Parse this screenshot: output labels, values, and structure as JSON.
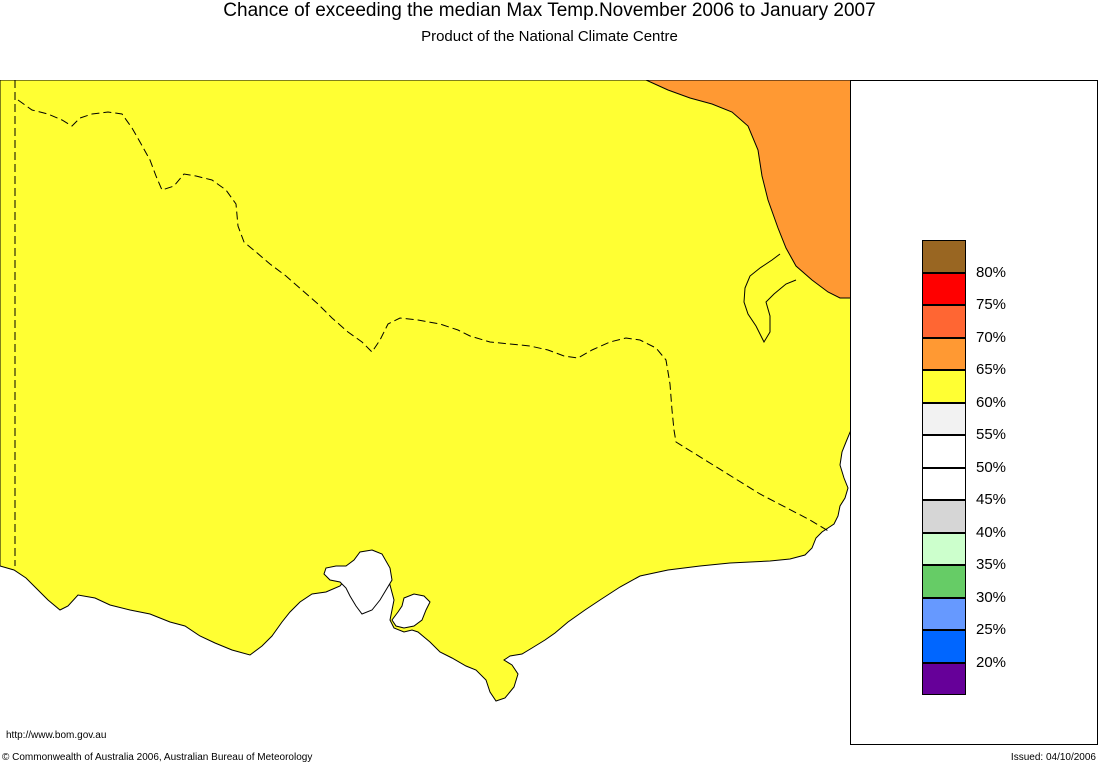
{
  "title": "Chance of exceeding the median Max Temp.November 2006 to January 2007",
  "subtitle": "Product of the National Climate Centre",
  "map": {
    "land_color": "#ffff33",
    "sea_color": "#ffffff",
    "region_65_70_color": "#ff9933",
    "outline_color": "#000000"
  },
  "legend": {
    "items": [
      {
        "color": "#996622",
        "label": "80%"
      },
      {
        "color": "#ff0000",
        "label": "75%"
      },
      {
        "color": "#ff6633",
        "label": "70%"
      },
      {
        "color": "#ff9933",
        "label": "65%"
      },
      {
        "color": "#ffff33",
        "label": "60%"
      },
      {
        "color": "#f2f2f2",
        "label": "55%"
      },
      {
        "color": "#ffffff",
        "label": "50%"
      },
      {
        "color": "#ffffff",
        "label": "45%"
      },
      {
        "color": "#d6d6d6",
        "label": "40%"
      },
      {
        "color": "#ccffcc",
        "label": "35%"
      },
      {
        "color": "#66cc66",
        "label": "30%"
      },
      {
        "color": "#6699ff",
        "label": "25%"
      },
      {
        "color": "#0066ff",
        "label": ""
      },
      {
        "color": "#660099",
        "label": ""
      }
    ],
    "extra_labels": [
      "20%"
    ]
  },
  "footer": {
    "url": "http://www.bom.gov.au",
    "copyright": "© Commonwealth of Australia 2006, Australian Bureau of Meteorology",
    "issued": "Issued: 04/10/2006"
  }
}
